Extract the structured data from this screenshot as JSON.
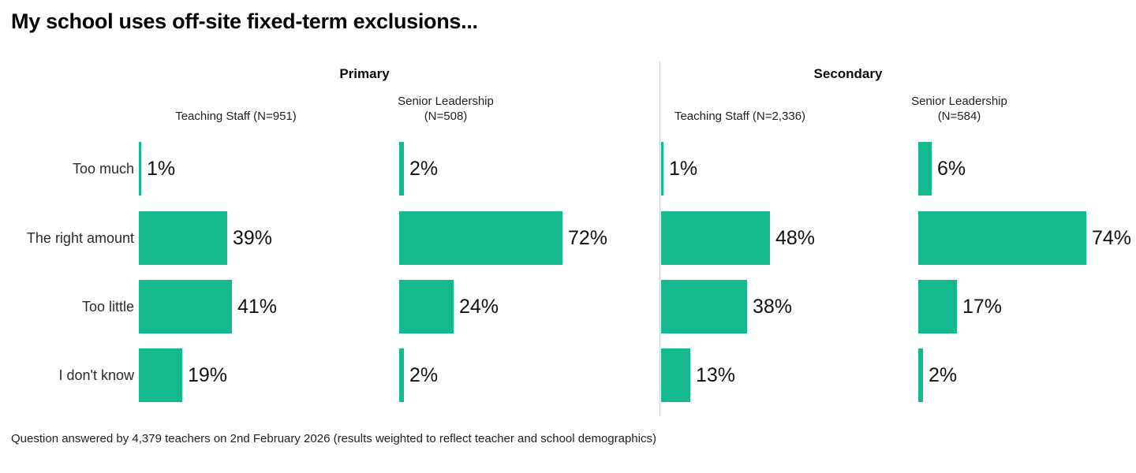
{
  "title": "My school uses off-site fixed-term exclusions...",
  "footnote": "Question answered by 4,379 teachers on 2nd February 2026 (results weighted to reflect teacher and school demographics)",
  "accent_color": "#15b990",
  "divider_color": "#cccccc",
  "chart_data": {
    "type": "bar",
    "orientation": "horizontal",
    "grid": false,
    "legend": "none",
    "xlim": [
      0,
      100
    ],
    "value_suffix": "%",
    "categories": [
      "Too much",
      "The right amount",
      "Too little",
      "I don't know"
    ],
    "sections": [
      {
        "label": "Primary"
      },
      {
        "label": "Secondary"
      }
    ],
    "panels": [
      {
        "section": "Primary",
        "header_lines": [
          "Teaching Staff (N=951)"
        ],
        "values": [
          1,
          39,
          41,
          19
        ]
      },
      {
        "section": "Primary",
        "header_lines": [
          "Senior Leadership",
          "(N=508)"
        ],
        "values": [
          2,
          72,
          24,
          2
        ]
      },
      {
        "section": "Secondary",
        "header_lines": [
          "Teaching Staff (N=2,336)"
        ],
        "values": [
          1,
          48,
          38,
          13
        ]
      },
      {
        "section": "Secondary",
        "header_lines": [
          "Senior Leadership",
          "(N=584)"
        ],
        "values": [
          6,
          74,
          17,
          2
        ]
      }
    ]
  }
}
